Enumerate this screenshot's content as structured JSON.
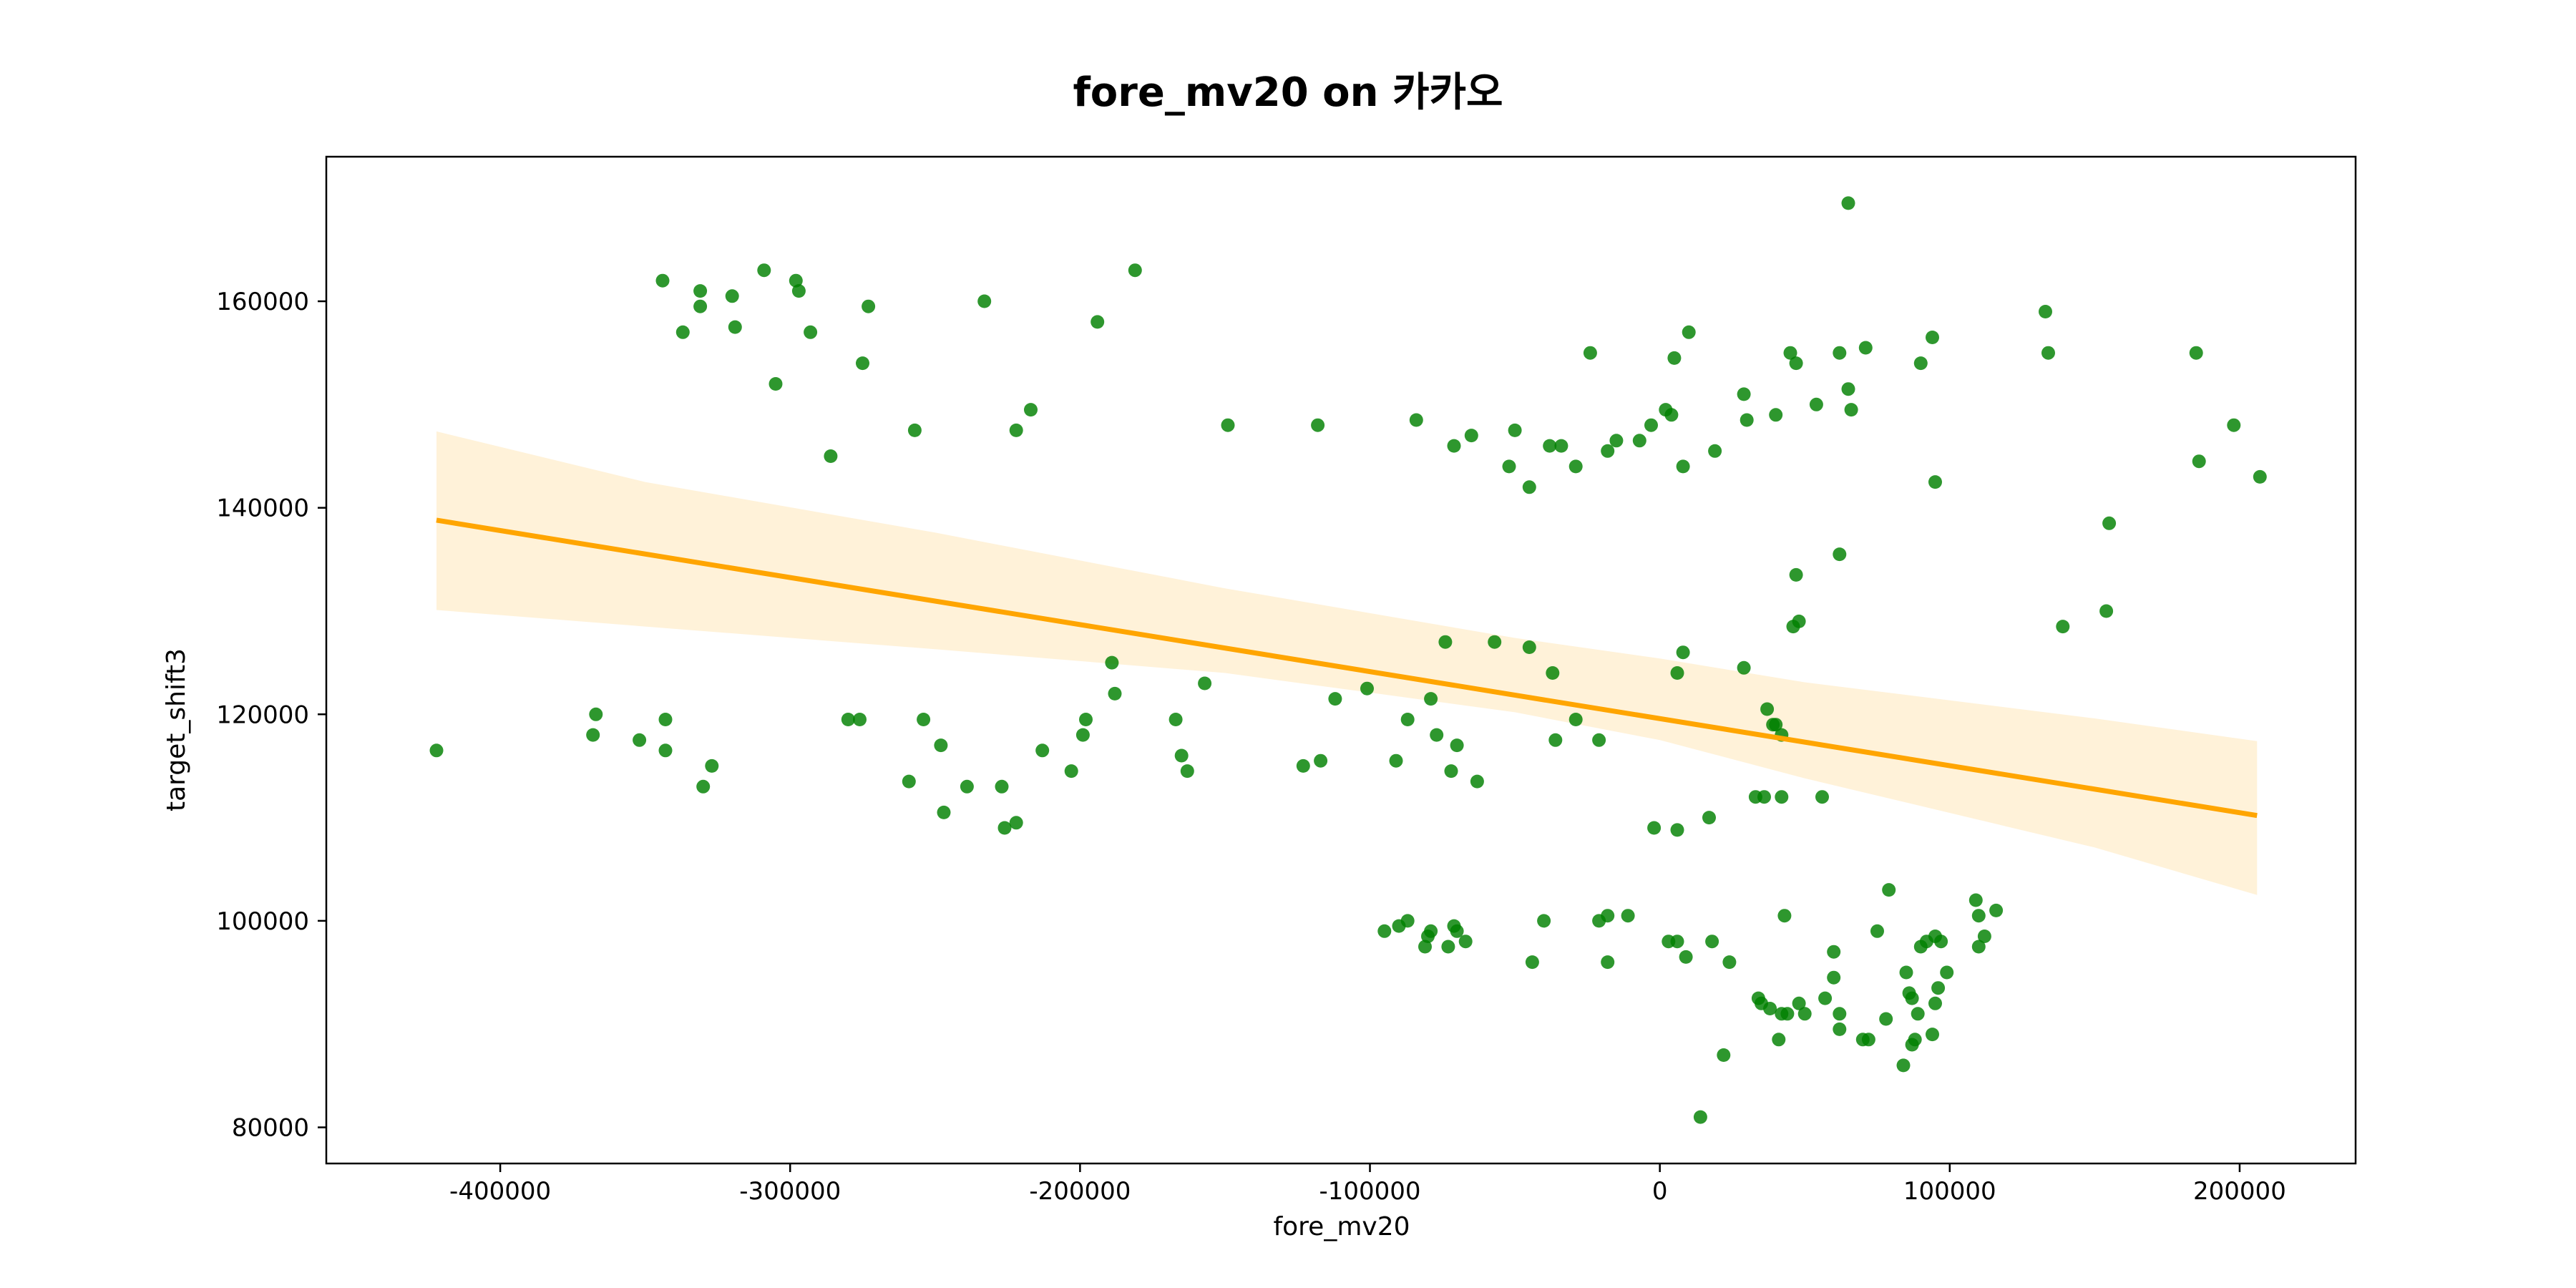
{
  "chart_data": {
    "type": "scatter",
    "title": "fore_mv20 on 카카오",
    "xlabel": "fore_mv20",
    "ylabel": "target_shift3",
    "xlim": [
      -460000,
      240000
    ],
    "ylim": [
      76500,
      174000
    ],
    "xticks": [
      -400000,
      -300000,
      -200000,
      -100000,
      0,
      100000,
      200000
    ],
    "yticks": [
      80000,
      100000,
      120000,
      140000,
      160000
    ],
    "grid": false,
    "legend": "none",
    "colors": {
      "points": "#008000",
      "regression_line": "#ffa500",
      "confidence_band": "#ffa500"
    },
    "regression": {
      "x": [
        -422000,
        206000
      ],
      "y": [
        138800,
        110200
      ]
    },
    "confidence_band": {
      "x": [
        -422000,
        -350000,
        -250000,
        -150000,
        -50000,
        0,
        50000,
        150000,
        206000
      ],
      "upper": [
        147400,
        142500,
        137600,
        132200,
        127400,
        125400,
        123100,
        119600,
        117400
      ],
      "lower": [
        130100,
        128500,
        126300,
        124000,
        120200,
        117500,
        113800,
        107100,
        102500
      ]
    },
    "points": [
      [
        -422000,
        116500
      ],
      [
        -367000,
        120000
      ],
      [
        -368000,
        118000
      ],
      [
        -352000,
        117500
      ],
      [
        -343000,
        119500
      ],
      [
        -343000,
        116500
      ],
      [
        -330000,
        113000
      ],
      [
        -327000,
        115000
      ],
      [
        -344000,
        162000
      ],
      [
        -331000,
        161000
      ],
      [
        -331000,
        159500
      ],
      [
        -337000,
        157000
      ],
      [
        -320000,
        160500
      ],
      [
        -319000,
        157500
      ],
      [
        -309000,
        163000
      ],
      [
        -305000,
        152000
      ],
      [
        -298000,
        162000
      ],
      [
        -297000,
        161000
      ],
      [
        -293000,
        157000
      ],
      [
        -286000,
        145000
      ],
      [
        -275000,
        154000
      ],
      [
        -273000,
        159500
      ],
      [
        -257000,
        147500
      ],
      [
        -233000,
        160000
      ],
      [
        -222000,
        147500
      ],
      [
        -217000,
        149500
      ],
      [
        -194000,
        158000
      ],
      [
        -181000,
        163000
      ],
      [
        -149000,
        148000
      ],
      [
        -118000,
        148000
      ],
      [
        -280000,
        119500
      ],
      [
        -276000,
        119500
      ],
      [
        -259000,
        113500
      ],
      [
        -254000,
        119500
      ],
      [
        -248000,
        117000
      ],
      [
        -247000,
        110500
      ],
      [
        -239000,
        113000
      ],
      [
        -227000,
        113000
      ],
      [
        -226000,
        109000
      ],
      [
        -222000,
        109500
      ],
      [
        -213000,
        116500
      ],
      [
        -203000,
        114500
      ],
      [
        -199000,
        118000
      ],
      [
        -198000,
        119500
      ],
      [
        -189000,
        125000
      ],
      [
        -188000,
        122000
      ],
      [
        -167000,
        119500
      ],
      [
        -165000,
        116000
      ],
      [
        -163000,
        114500
      ],
      [
        -157000,
        123000
      ],
      [
        -123000,
        115000
      ],
      [
        -117000,
        115500
      ],
      [
        -112000,
        121500
      ],
      [
        -101000,
        122500
      ],
      [
        -91000,
        115500
      ],
      [
        -87000,
        119500
      ],
      [
        -79000,
        121500
      ],
      [
        -77000,
        118000
      ],
      [
        -74000,
        127000
      ],
      [
        -72000,
        114500
      ],
      [
        -70000,
        117000
      ],
      [
        -63000,
        113500
      ],
      [
        -57000,
        127000
      ],
      [
        -45000,
        126500
      ],
      [
        -37000,
        124000
      ],
      [
        -36000,
        117500
      ],
      [
        -29000,
        119500
      ],
      [
        -21000,
        117500
      ],
      [
        -84000,
        148500
      ],
      [
        -71000,
        146000
      ],
      [
        -65000,
        147000
      ],
      [
        -52000,
        144000
      ],
      [
        -50000,
        147500
      ],
      [
        -45000,
        142000
      ],
      [
        -38000,
        146000
      ],
      [
        -34000,
        146000
      ],
      [
        -29000,
        144000
      ],
      [
        -24000,
        155000
      ],
      [
        -18000,
        145500
      ],
      [
        -15000,
        146500
      ],
      [
        -7000,
        146500
      ],
      [
        -3000,
        148000
      ],
      [
        2000,
        149500
      ],
      [
        4000,
        149000
      ],
      [
        5000,
        154500
      ],
      [
        8000,
        144000
      ],
      [
        10000,
        157000
      ],
      [
        19000,
        145500
      ],
      [
        29000,
        151000
      ],
      [
        30000,
        148500
      ],
      [
        40000,
        149000
      ],
      [
        45000,
        155000
      ],
      [
        47000,
        154000
      ],
      [
        54000,
        150000
      ],
      [
        62000,
        155000
      ],
      [
        65000,
        151500
      ],
      [
        66000,
        149500
      ],
      [
        71000,
        155500
      ],
      [
        65000,
        169500
      ],
      [
        90000,
        154000
      ],
      [
        94000,
        156500
      ],
      [
        95000,
        142500
      ],
      [
        133000,
        159000
      ],
      [
        134000,
        155000
      ],
      [
        185000,
        155000
      ],
      [
        186000,
        144500
      ],
      [
        198000,
        148000
      ],
      [
        207000,
        143000
      ],
      [
        139000,
        128500
      ],
      [
        154000,
        130000
      ],
      [
        155000,
        138500
      ],
      [
        47000,
        133500
      ],
      [
        46000,
        128500
      ],
      [
        48000,
        129000
      ],
      [
        62000,
        135500
      ],
      [
        29000,
        124500
      ],
      [
        6000,
        124000
      ],
      [
        8000,
        126000
      ],
      [
        37000,
        120500
      ],
      [
        39000,
        119000
      ],
      [
        40000,
        119000
      ],
      [
        42000,
        118000
      ],
      [
        33000,
        112000
      ],
      [
        36000,
        112000
      ],
      [
        42000,
        112000
      ],
      [
        56000,
        112000
      ],
      [
        -2000,
        109000
      ],
      [
        6000,
        108800
      ],
      [
        17000,
        110000
      ],
      [
        -95000,
        99000
      ],
      [
        -90000,
        99500
      ],
      [
        -87000,
        100000
      ],
      [
        -81000,
        97500
      ],
      [
        -80000,
        98500
      ],
      [
        -79000,
        99000
      ],
      [
        -73000,
        97500
      ],
      [
        -71000,
        99500
      ],
      [
        -70000,
        99000
      ],
      [
        -67000,
        98000
      ],
      [
        -44000,
        96000
      ],
      [
        -40000,
        100000
      ],
      [
        -21000,
        100000
      ],
      [
        -18000,
        100500
      ],
      [
        -18000,
        96000
      ],
      [
        -11000,
        100500
      ],
      [
        3000,
        98000
      ],
      [
        6000,
        98000
      ],
      [
        9000,
        96500
      ],
      [
        18000,
        98000
      ],
      [
        24000,
        96000
      ],
      [
        14000,
        81000
      ],
      [
        22000,
        87000
      ],
      [
        34000,
        92500
      ],
      [
        35000,
        92000
      ],
      [
        38000,
        91500
      ],
      [
        41000,
        88500
      ],
      [
        42000,
        91000
      ],
      [
        43000,
        100500
      ],
      [
        44000,
        91000
      ],
      [
        48000,
        92000
      ],
      [
        50000,
        91000
      ],
      [
        57000,
        92500
      ],
      [
        60000,
        97000
      ],
      [
        60000,
        94500
      ],
      [
        62000,
        91000
      ],
      [
        62000,
        89500
      ],
      [
        70000,
        88500
      ],
      [
        72000,
        88500
      ],
      [
        75000,
        99000
      ],
      [
        78000,
        90500
      ],
      [
        79000,
        103000
      ],
      [
        85000,
        95000
      ],
      [
        84000,
        86000
      ],
      [
        86000,
        93000
      ],
      [
        87000,
        92500
      ],
      [
        87000,
        88000
      ],
      [
        88000,
        88500
      ],
      [
        89000,
        91000
      ],
      [
        90000,
        97500
      ],
      [
        92000,
        98000
      ],
      [
        94000,
        89000
      ],
      [
        95000,
        98500
      ],
      [
        95000,
        92000
      ],
      [
        96000,
        93500
      ],
      [
        97000,
        98000
      ],
      [
        99000,
        95000
      ],
      [
        109000,
        102000
      ],
      [
        110000,
        100500
      ],
      [
        110000,
        97500
      ],
      [
        112000,
        98500
      ],
      [
        116000,
        101000
      ]
    ]
  }
}
